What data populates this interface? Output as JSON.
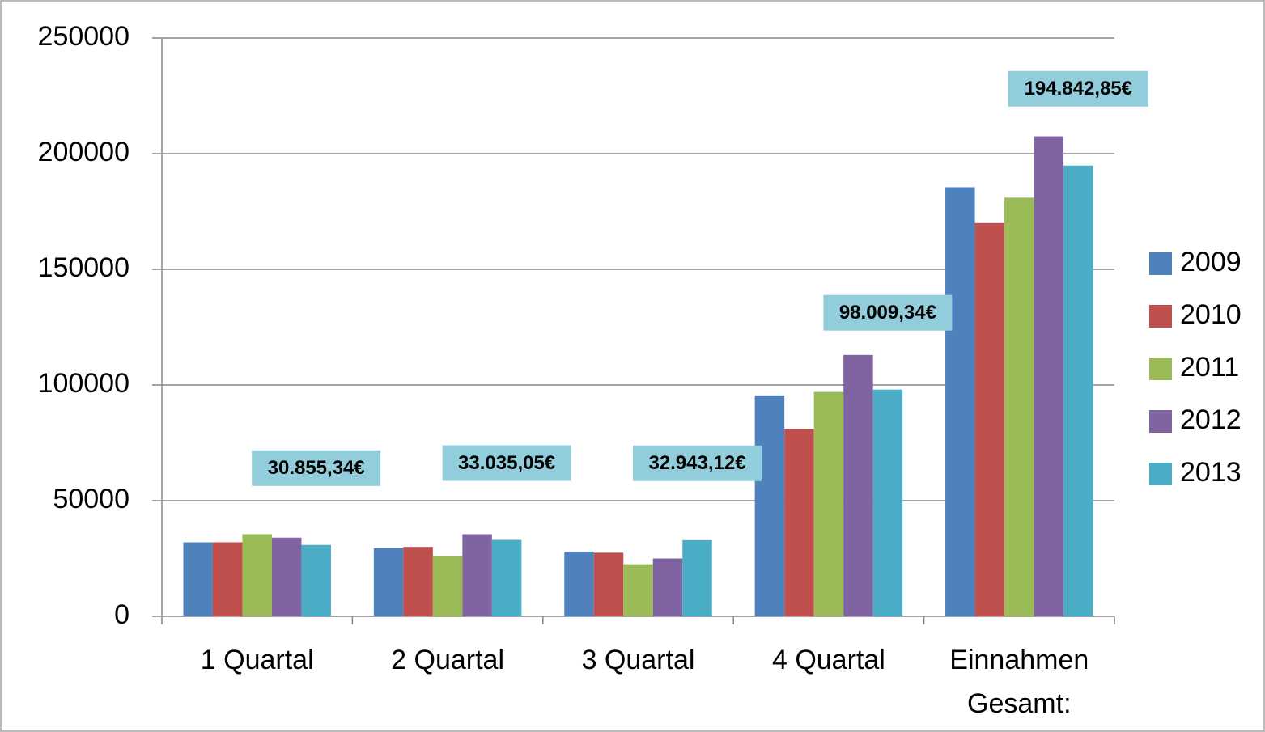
{
  "chart_data": {
    "type": "bar",
    "categories": [
      "1 Quartal",
      "2 Quartal",
      "3 Quartal",
      "4 Quartal",
      "Einnahmen Gesamt:"
    ],
    "series": [
      {
        "name": "2009",
        "color": "#4f81bd",
        "values": [
          32000,
          29500,
          28000,
          95500,
          185500
        ]
      },
      {
        "name": "2010",
        "color": "#c0504d",
        "values": [
          32000,
          30000,
          27500,
          81000,
          170000
        ]
      },
      {
        "name": "2011",
        "color": "#9bbb59",
        "values": [
          35500,
          26000,
          22500,
          97000,
          181000
        ]
      },
      {
        "name": "2012",
        "color": "#8064a2",
        "values": [
          34000,
          35500,
          25000,
          113000,
          207500
        ]
      },
      {
        "name": "2013",
        "color": "#4bacc6",
        "values": [
          30855.34,
          33035.05,
          32943.12,
          98009.34,
          194842.85
        ],
        "value_labels": [
          "30.855,34€",
          "33.035,05€",
          "32.943,12€",
          "98.009,34€",
          "194.842,85€"
        ]
      }
    ],
    "ylim": [
      0,
      250000
    ],
    "yticks": [
      0,
      50000,
      100000,
      150000,
      200000,
      250000
    ],
    "grid": true,
    "legend": "right"
  }
}
